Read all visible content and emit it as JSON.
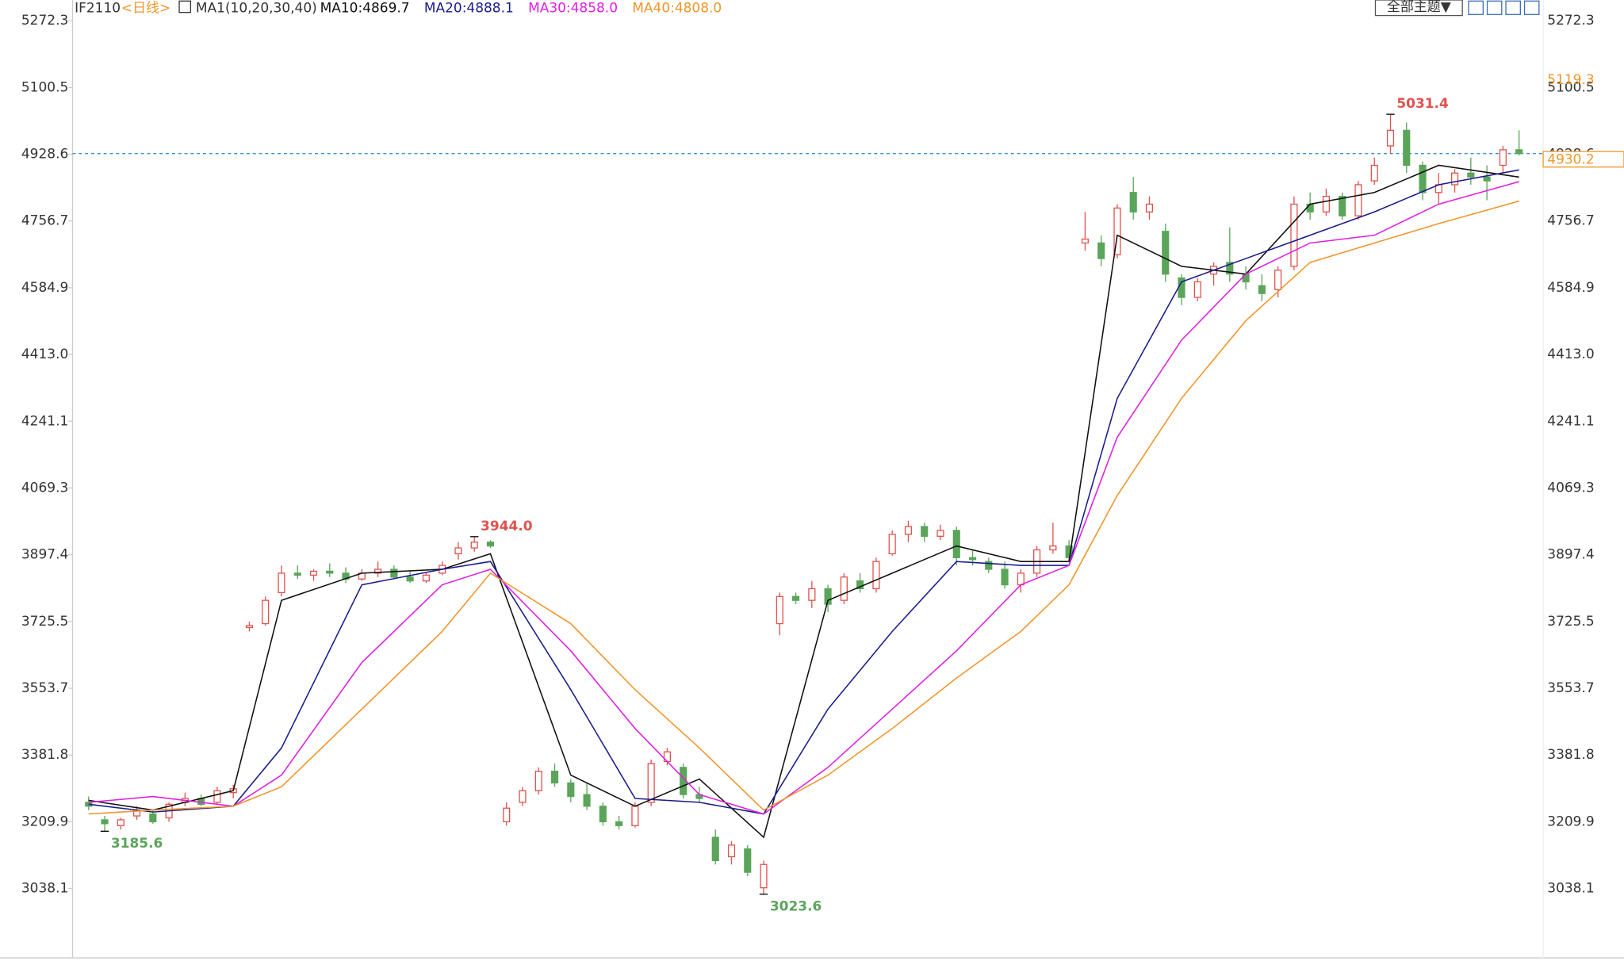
{
  "chart_data": {
    "type": "candlestick",
    "symbol": "IF2110",
    "period": "<日线>",
    "indicator": "MA1(10,20,30,40)",
    "theme_button": "全部主题▼",
    "ylim": [
      2859.5,
      5325.6
    ],
    "xlim": [
      -1,
      90.5
    ],
    "yticks": [
      5272.3,
      5100.5,
      4928.6,
      4756.7,
      4584.9,
      {
        "value": 4413,
        "label": "4413.0"
      },
      4241.1,
      4069.3,
      3897.4,
      3725.5,
      3553.7,
      3381.8,
      3209.9,
      3038.1
    ],
    "up_color": "#e0524e",
    "down_color": "#5aa55a",
    "open": [
      3260,
      3215,
      3200,
      3225,
      3230,
      3220,
      3260,
      3270,
      3260,
      3285,
      3710,
      3720,
      3800,
      3850,
      3845,
      3855,
      3850,
      3835,
      3850,
      3860,
      3840,
      3830,
      3850,
      3900,
      3915,
      3930,
      3210,
      3260,
      3290,
      3340,
      3310,
      3280,
      3250,
      3210,
      3200,
      3260,
      3365,
      3350,
      3280,
      3170,
      3120,
      3140,
      3040,
      3720,
      3790,
      3780,
      3810,
      3780,
      3830,
      3810,
      3900,
      3950,
      3970,
      3945,
      3960,
      3890,
      3880,
      3860,
      3820,
      3850,
      3910,
      3920,
      4700,
      4700,
      4670,
      4830,
      4780,
      4730,
      4610,
      4560,
      4620,
      4650,
      4620,
      4590,
      4580,
      4640,
      4800,
      4780,
      4820,
      4770,
      4860,
      4950,
      4990,
      4900,
      4830,
      4850,
      4880,
      4870,
      4900,
      4940
    ],
    "high": [
      3275,
      3225,
      3220,
      3250,
      3240,
      3260,
      3285,
      3280,
      3300,
      3305,
      3725,
      3790,
      3870,
      3870,
      3860,
      3875,
      3865,
      3860,
      3880,
      3870,
      3855,
      3850,
      3880,
      3930,
      3944,
      3935,
      3260,
      3300,
      3350,
      3360,
      3320,
      3310,
      3260,
      3225,
      3260,
      3370,
      3400,
      3360,
      3300,
      3190,
      3160,
      3150,
      3110,
      3800,
      3800,
      3830,
      3820,
      3850,
      3850,
      3890,
      3960,
      3985,
      3980,
      3975,
      3970,
      3910,
      3890,
      3880,
      3860,
      3920,
      3980,
      3935,
      4780,
      4720,
      4800,
      4870,
      4820,
      4750,
      4620,
      4610,
      4650,
      4740,
      4640,
      4620,
      4640,
      4820,
      4830,
      4840,
      4830,
      4860,
      4920,
      5031.4,
      5010,
      4910,
      4880,
      4890,
      4920,
      4900,
      4950,
      4990
    ],
    "low": [
      3240,
      3185.6,
      3190,
      3215,
      3205,
      3210,
      3250,
      3250,
      3255,
      3270,
      3700,
      3715,
      3790,
      3835,
      3830,
      3840,
      3825,
      3830,
      3840,
      3835,
      3825,
      3825,
      3845,
      3885,
      3905,
      3915,
      3200,
      3250,
      3280,
      3300,
      3260,
      3240,
      3200,
      3190,
      3195,
      3250,
      3355,
      3270,
      3260,
      3100,
      3100,
      3070,
      3023.6,
      3690,
      3770,
      3760,
      3750,
      3770,
      3800,
      3800,
      3895,
      3930,
      3930,
      3935,
      3870,
      3870,
      3850,
      3810,
      3800,
      3840,
      3900,
      3880,
      4680,
      4640,
      4660,
      4760,
      4760,
      4600,
      4540,
      4550,
      4590,
      4600,
      4580,
      4550,
      4560,
      4630,
      4760,
      4770,
      4760,
      4760,
      4850,
      4930,
      4880,
      4810,
      4800,
      4830,
      4850,
      4810,
      4880,
      4925
    ],
    "close": [
      3250,
      3205,
      3215,
      3240,
      3210,
      3255,
      3270,
      3255,
      3290,
      3295,
      3715,
      3780,
      3850,
      3845,
      3855,
      3850,
      3835,
      3850,
      3860,
      3840,
      3830,
      3845,
      3870,
      3915,
      3930,
      3920,
      3245,
      3290,
      3340,
      3310,
      3275,
      3250,
      3210,
      3200,
      3250,
      3360,
      3390,
      3280,
      3270,
      3110,
      3150,
      3080,
      3100,
      3790,
      3780,
      3810,
      3770,
      3840,
      3810,
      3880,
      3950,
      3970,
      3945,
      3960,
      3890,
      3885,
      3860,
      3820,
      3850,
      3910,
      3920,
      3890,
      4710,
      4660,
      4790,
      4780,
      4800,
      4620,
      4560,
      4600,
      4640,
      4620,
      4600,
      4570,
      4630,
      4800,
      4780,
      4820,
      4770,
      4850,
      4900,
      4990,
      4900,
      4830,
      4850,
      4880,
      4870,
      4860,
      4940,
      4930.2
    ],
    "series": [
      {
        "name": "MA10",
        "label": "MA10:4869.7",
        "color": "#111111",
        "x": [
          0,
          4,
          9,
          12,
          17,
          22,
          25,
          30,
          34,
          38,
          42,
          46,
          50,
          54,
          58,
          61,
          64,
          68,
          72,
          76,
          80,
          84,
          89
        ],
        "values": [
          3265,
          3240,
          3290,
          3780,
          3850,
          3860,
          3900,
          3330,
          3250,
          3320,
          3170,
          3780,
          3850,
          3920,
          3880,
          3880,
          4720,
          4640,
          4620,
          4800,
          4830,
          4900,
          4869.7
        ]
      },
      {
        "name": "MA20",
        "label": "MA20:4888.1",
        "color": "#1c1c8c",
        "x": [
          0,
          4,
          9,
          12,
          17,
          22,
          25,
          30,
          34,
          38,
          42,
          46,
          50,
          54,
          58,
          61,
          64,
          68,
          72,
          76,
          80,
          84,
          89
        ],
        "values": [
          3255,
          3235,
          3250,
          3400,
          3820,
          3860,
          3880,
          3550,
          3270,
          3260,
          3230,
          3500,
          3700,
          3880,
          3870,
          3870,
          4300,
          4600,
          4660,
          4720,
          4780,
          4850,
          4888.1
        ]
      },
      {
        "name": "MA30",
        "label": "MA30:4858.0",
        "color": "#e020e0",
        "x": [
          0,
          4,
          9,
          12,
          17,
          22,
          25,
          30,
          34,
          38,
          42,
          46,
          50,
          54,
          58,
          61,
          64,
          68,
          72,
          76,
          80,
          84,
          89
        ],
        "values": [
          3260,
          3275,
          3250,
          3330,
          3620,
          3820,
          3860,
          3650,
          3450,
          3280,
          3230,
          3350,
          3500,
          3650,
          3820,
          3870,
          4200,
          4450,
          4620,
          4700,
          4720,
          4800,
          4858.0
        ]
      },
      {
        "name": "MA40",
        "label": "MA40:4808.0",
        "color": "#f0962a",
        "x": [
          0,
          4,
          9,
          12,
          17,
          22,
          25,
          30,
          34,
          38,
          42,
          46,
          50,
          54,
          58,
          61,
          64,
          68,
          72,
          76,
          80,
          84,
          89
        ],
        "values": [
          3230,
          3240,
          3250,
          3300,
          3500,
          3700,
          3850,
          3720,
          3550,
          3400,
          3240,
          3330,
          3450,
          3580,
          3700,
          3820,
          4050,
          4300,
          4500,
          4650,
          4700,
          4750,
          4808.0
        ]
      }
    ],
    "annotations": [
      {
        "x": 1,
        "value": 3185.6,
        "label": "3185.6",
        "color": "#5aa55a"
      },
      {
        "x": 24,
        "value": 3944,
        "label": "3944.0",
        "color": "#e0524e"
      },
      {
        "x": 42,
        "value": 3023.6,
        "label": "3023.6",
        "color": "#5aa55a"
      },
      {
        "x": 81,
        "value": 5031.4,
        "label": "5031.4",
        "color": "#e0524e"
      }
    ],
    "last_price": 4930.2,
    "right_marker": 5119.3
  }
}
